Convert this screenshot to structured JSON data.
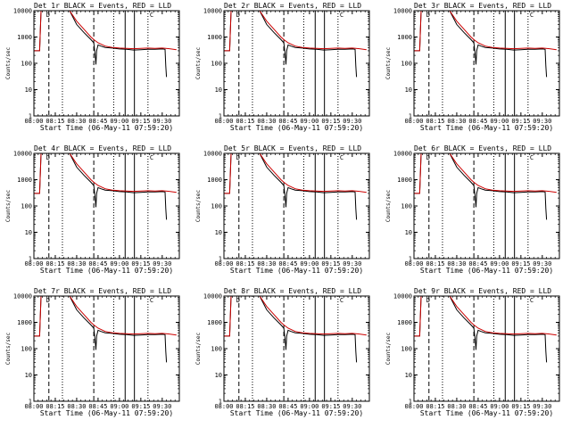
{
  "chart_data": {
    "type": "line",
    "common": {
      "ylabel": "Counts/sec",
      "xlabel": "Start Time (06-May-11 07:59:20)",
      "xtick_labels": [
        "08:00",
        "08:15",
        "08:30",
        "08:45",
        "09:00",
        "09:15",
        "09:30"
      ],
      "x_range_min": [
        0,
        102
      ],
      "ytick_labels": [
        "1",
        "10",
        "100",
        "1000",
        "10000"
      ],
      "ylim": [
        1,
        10000
      ],
      "yscale": "log",
      "legend_text": "BLACK = Events, RED = LLD",
      "marker_labels": [
        "D",
        "C"
      ],
      "dashed_lines_min": [
        10.5,
        42
      ],
      "dotted_lines_min": [
        20,
        56,
        80
      ],
      "solid_lines_min": [
        64,
        70.5
      ],
      "series": [
        {
          "name": "Events",
          "color": "#000000",
          "points": [
            [
              0,
              300
            ],
            [
              3,
              300
            ],
            [
              4,
              300
            ],
            [
              5,
              10000
            ],
            [
              10,
              10000
            ],
            [
              15,
              10000
            ],
            [
              20,
              10000
            ],
            [
              25,
              10000
            ],
            [
              30,
              3000
            ],
            [
              35,
              1500
            ],
            [
              40,
              800
            ],
            [
              42,
              600
            ],
            [
              43,
              200
            ],
            [
              43.5,
              90
            ],
            [
              44,
              300
            ],
            [
              45,
              500
            ],
            [
              47,
              450
            ],
            [
              50,
              400
            ],
            [
              55,
              380
            ],
            [
              60,
              350
            ],
            [
              65,
              340
            ],
            [
              70,
              320
            ],
            [
              75,
              330
            ],
            [
              80,
              340
            ],
            [
              85,
              340
            ],
            [
              90,
              350
            ],
            [
              92,
              340
            ],
            [
              92.5,
              80
            ],
            [
              93,
              30
            ]
          ]
        },
        {
          "name": "LLD",
          "color": "#cc0000",
          "points": [
            [
              0,
              300
            ],
            [
              3,
              300
            ],
            [
              4,
              300
            ],
            [
              5,
              10000
            ],
            [
              10,
              10000
            ],
            [
              15,
              10000
            ],
            [
              20,
              10000
            ],
            [
              25,
              10000
            ],
            [
              30,
              4000
            ],
            [
              35,
              2000
            ],
            [
              40,
              1000
            ],
            [
              42,
              800
            ],
            [
              45,
              600
            ],
            [
              50,
              450
            ],
            [
              55,
              400
            ],
            [
              60,
              380
            ],
            [
              65,
              370
            ],
            [
              70,
              360
            ],
            [
              75,
              370
            ],
            [
              80,
              380
            ],
            [
              85,
              370
            ],
            [
              90,
              380
            ],
            [
              95,
              360
            ],
            [
              100,
              330
            ]
          ]
        }
      ]
    },
    "panels": [
      {
        "title": "Det 1r"
      },
      {
        "title": "Det 2r"
      },
      {
        "title": "Det 3r"
      },
      {
        "title": "Det 4r"
      },
      {
        "title": "Det 5r"
      },
      {
        "title": "Det 6r"
      },
      {
        "title": "Det 7r"
      },
      {
        "title": "Det 8r"
      },
      {
        "title": "Det 9r"
      }
    ]
  }
}
